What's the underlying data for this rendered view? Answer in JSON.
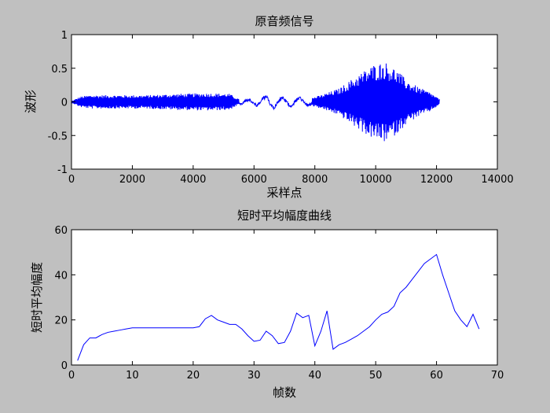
{
  "chart_data": [
    {
      "type": "line",
      "title": "原音频信号",
      "xlabel": "采样点",
      "ylabel": "波形",
      "xlim": [
        0,
        14000
      ],
      "ylim": [
        -1,
        1
      ],
      "xticks": [
        0,
        2000,
        4000,
        6000,
        8000,
        10000,
        12000,
        14000
      ],
      "yticks": [
        -1,
        -0.5,
        0,
        0.5,
        1
      ],
      "ytick_labels": [
        "-1",
        "-0.5",
        "0",
        "0.5",
        "1"
      ],
      "grid": false,
      "series_color": "#0000ff",
      "envelope": [
        {
          "x": 0,
          "amp": 0.01
        },
        {
          "x": 120,
          "amp": 0.04
        },
        {
          "x": 300,
          "amp": 0.08
        },
        {
          "x": 600,
          "amp": 0.1
        },
        {
          "x": 1500,
          "amp": 0.1
        },
        {
          "x": 2500,
          "amp": 0.1
        },
        {
          "x": 3500,
          "amp": 0.12
        },
        {
          "x": 4500,
          "amp": 0.13
        },
        {
          "x": 5200,
          "amp": 0.12
        },
        {
          "x": 5500,
          "amp": 0.04
        },
        {
          "x": 5800,
          "amp": 0.03
        },
        {
          "x": 6000,
          "amp": 0.06
        },
        {
          "x": 6500,
          "amp": 0.1
        },
        {
          "x": 7000,
          "amp": 0.06
        },
        {
          "x": 7400,
          "amp": 0.08
        },
        {
          "x": 7800,
          "amp": 0.05
        },
        {
          "x": 8200,
          "amp": 0.1
        },
        {
          "x": 8800,
          "amp": 0.2
        },
        {
          "x": 9400,
          "amp": 0.4
        },
        {
          "x": 9900,
          "amp": 0.55
        },
        {
          "x": 10300,
          "amp": 0.6
        },
        {
          "x": 10700,
          "amp": 0.48
        },
        {
          "x": 11000,
          "amp": 0.33
        },
        {
          "x": 11400,
          "amp": 0.22
        },
        {
          "x": 11800,
          "amp": 0.14
        },
        {
          "x": 12100,
          "amp": 0.04
        }
      ]
    },
    {
      "type": "line",
      "title": "短时平均幅度曲线",
      "xlabel": "帧数",
      "ylabel": "短时平均幅度",
      "xlim": [
        0,
        70
      ],
      "ylim": [
        0,
        60
      ],
      "xticks": [
        0,
        10,
        20,
        30,
        40,
        50,
        60,
        70
      ],
      "yticks": [
        0,
        20,
        40,
        60
      ],
      "grid": false,
      "series_color": "#0000ff",
      "x": [
        1,
        2,
        3,
        4,
        5,
        6,
        7,
        8,
        9,
        10,
        11,
        12,
        13,
        14,
        15,
        16,
        17,
        18,
        19,
        20,
        21,
        22,
        23,
        24,
        25,
        26,
        27,
        28,
        29,
        30,
        31,
        32,
        33,
        34,
        35,
        36,
        37,
        38,
        39,
        40,
        41,
        42,
        43,
        44,
        45,
        46,
        47,
        48,
        49,
        50,
        51,
        52,
        53,
        54,
        55,
        56,
        57,
        58,
        59,
        60,
        61,
        62,
        63,
        64,
        65,
        66,
        67
      ],
      "values": [
        2,
        9,
        12,
        12,
        13.5,
        14.5,
        15,
        15.5,
        16,
        16.5,
        16.5,
        16.5,
        16.5,
        16.5,
        16.5,
        16.5,
        16.5,
        16.5,
        16.5,
        16.5,
        17,
        20.5,
        22,
        20,
        19,
        18,
        18,
        16,
        13,
        10.5,
        11,
        15,
        13,
        9.5,
        10,
        15,
        23,
        21,
        22,
        8.5,
        15,
        24,
        7,
        9,
        10,
        11.5,
        13,
        15,
        17,
        20,
        22.5,
        23.5,
        26,
        32,
        34.5,
        38,
        41.5,
        45,
        47,
        49,
        40,
        32,
        24,
        20,
        17,
        22.5,
        16
      ]
    }
  ]
}
